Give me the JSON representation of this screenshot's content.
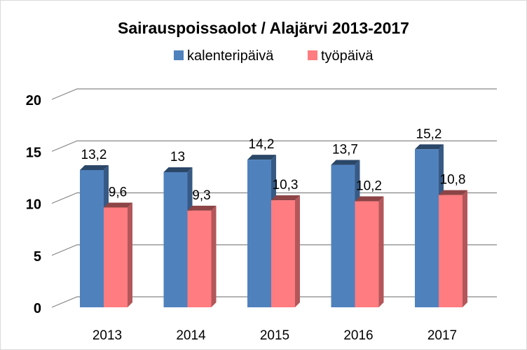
{
  "chart_data": {
    "type": "bar",
    "title": "Sairauspoissaolot / Alajärvi 2013-2017",
    "categories": [
      "2013",
      "2014",
      "2015",
      "2016",
      "2017"
    ],
    "series": [
      {
        "name": "kalenteripäivä",
        "values": [
          13.2,
          13,
          14.2,
          13.7,
          15.2
        ],
        "labels": [
          "13,2",
          "13",
          "14,2",
          "13,7",
          "15,2"
        ],
        "color": "#4f81bd"
      },
      {
        "name": "työpäivä",
        "values": [
          9.6,
          9.3,
          10.3,
          10.2,
          10.8
        ],
        "labels": [
          "9,6",
          "9,3",
          "10,3",
          "10,2",
          "10,8"
        ],
        "color": "#ff7c80"
      }
    ],
    "ylim": [
      0,
      20
    ],
    "yticks": [
      0,
      5,
      10,
      15,
      20
    ],
    "xlabel": "",
    "ylabel": "",
    "legend": "top-center",
    "grid": true,
    "style": "3d-clustered-column"
  }
}
